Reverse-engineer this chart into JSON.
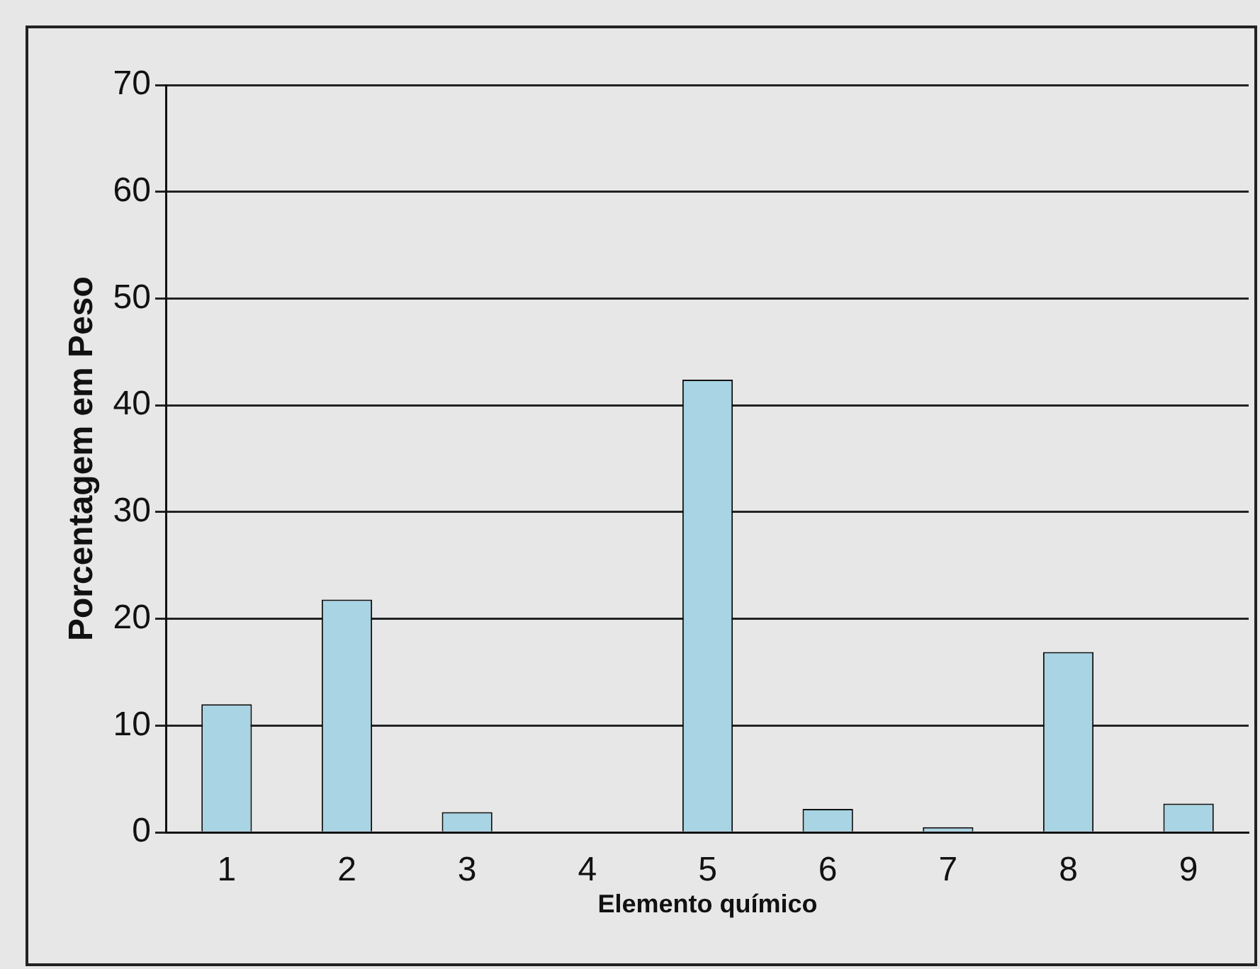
{
  "chart_data": {
    "type": "bar",
    "xlabel": "Elemento químico",
    "ylabel": "Porcentagem em Peso",
    "categories": [
      "1",
      "2",
      "3",
      "4",
      "5",
      "6",
      "7",
      "8",
      "9"
    ],
    "values": [
      12.0,
      21.8,
      1.9,
      0,
      42.4,
      2.2,
      0.5,
      16.9,
      2.7
    ],
    "color": "#a8d4e4",
    "ylim": [
      0,
      70
    ],
    "yticks": [
      0,
      10,
      20,
      30,
      40,
      50,
      60,
      70
    ],
    "grid": "y",
    "legend": false
  }
}
